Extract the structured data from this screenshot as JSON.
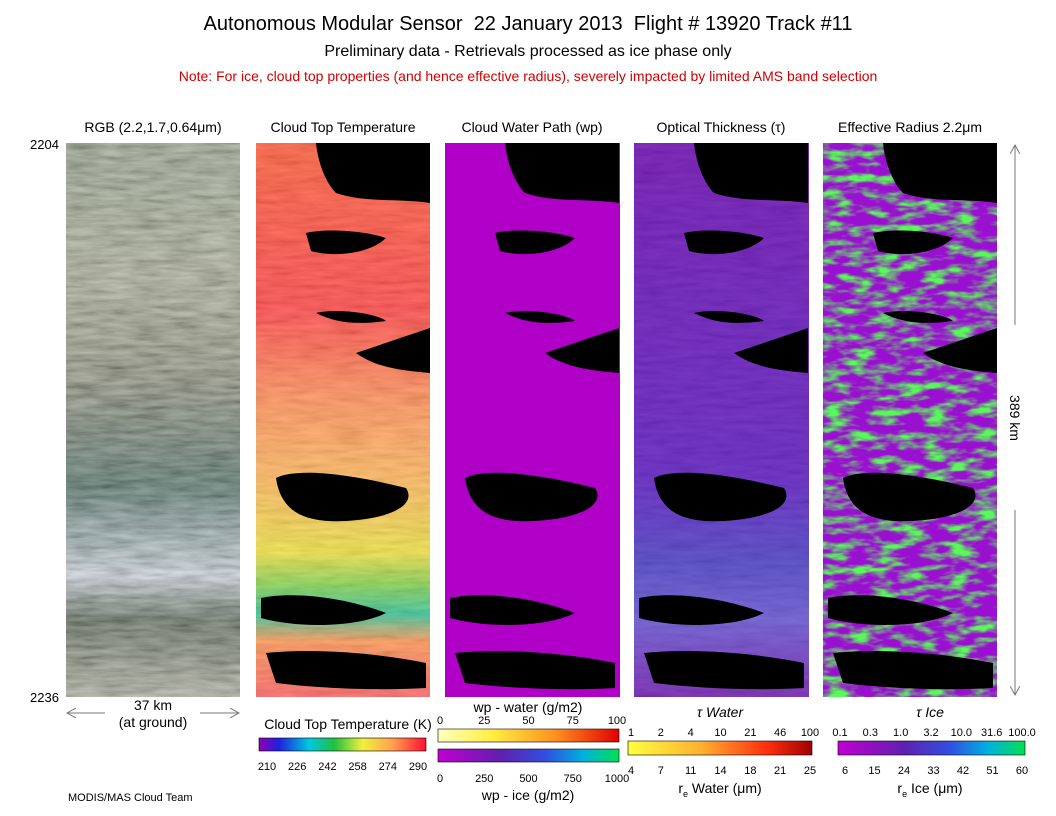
{
  "header": {
    "title": "Autonomous Modular Sensor  22 January 2013  Flight # 13920 Track #11",
    "subtitle": "Preliminary data - Retrievals processed as ice phase only",
    "note": "Note: For ice, cloud top properties (and hence effective radius), severely impacted by limited AMS band selection"
  },
  "panels": [
    {
      "title": "RGB (2.2,1.7,0.64μm)"
    },
    {
      "title": "Cloud Top Temperature"
    },
    {
      "title": "Cloud Water Path (wp)"
    },
    {
      "title": "Optical Thickness (τ)"
    },
    {
      "title": "Effective Radius 2.2μm"
    }
  ],
  "scale": {
    "top": "2204",
    "bottom": "2236",
    "height": "389 km",
    "width": "37 km",
    "width_note": "(at ground)"
  },
  "colorbars": {
    "ctt": {
      "title": "Cloud Top Temperature (K)",
      "ticks": [
        "210",
        "226",
        "242",
        "258",
        "274",
        "290"
      ]
    },
    "wp_water": {
      "title": "wp - water (g/m2)",
      "ticks": [
        "0",
        "25",
        "50",
        "75",
        "100"
      ]
    },
    "wp_ice": {
      "title": "wp - ice (g/m2)",
      "ticks": [
        "0",
        "250",
        "500",
        "750",
        "1000"
      ]
    },
    "tau_water": {
      "title": "τ Water",
      "ticks": [
        "1",
        "2",
        "4",
        "10",
        "21",
        "46",
        "100"
      ]
    },
    "re_water": {
      "title": [
        "r",
        "e",
        " Water (μm)"
      ],
      "ticks": [
        "4",
        "7",
        "11",
        "14",
        "18",
        "21",
        "25"
      ]
    },
    "tau_ice": {
      "title": "τ Ice",
      "ticks": [
        "0.1",
        "0.3",
        "1.0",
        "3.2",
        "10.0",
        "31.6",
        "100.0"
      ]
    },
    "re_ice": {
      "title": [
        "r",
        "e",
        " Ice (μm)"
      ],
      "ticks": [
        "6",
        "15",
        "24",
        "33",
        "42",
        "51",
        "60"
      ]
    }
  },
  "credit": "MODIS/MAS Cloud Team"
}
